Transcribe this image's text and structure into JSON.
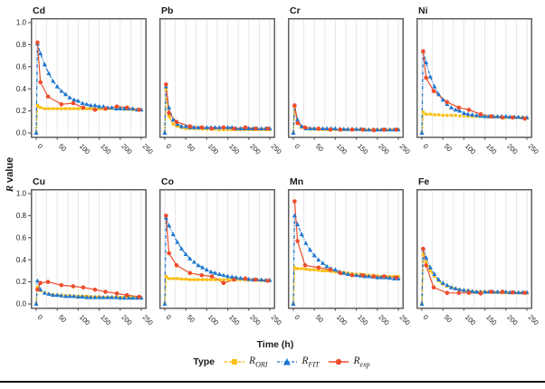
{
  "figure": {
    "y_axis_label_italic": "R",
    "y_axis_label_rest": " value",
    "x_axis_label": "Time (h)",
    "legend": {
      "title": "Type",
      "items": [
        {
          "main": "R",
          "sub": "ORI",
          "color": "#FCBE12",
          "marker": "square",
          "line": "dashed"
        },
        {
          "main": "R",
          "sub": "FIT",
          "color": "#1B76D1",
          "marker": "triangle",
          "line": "dashdot"
        },
        {
          "main": "R",
          "sub": "exp",
          "color": "#EE4D2B",
          "marker": "circle",
          "line": "solid"
        }
      ]
    },
    "colors": {
      "ori": "#FCBE12",
      "fit": "#1B76D1",
      "exp": "#EE4D2B",
      "grid": "#E4E4E4",
      "panel_border": "#5F5F5F",
      "tick_text": "#1a1a1a"
    }
  },
  "chart_data": {
    "type": "line",
    "layout": "2 rows x 4 columns of subplots, shared axes",
    "xlabel": "Time (h)",
    "ylabel": "R value",
    "xlim": [
      0,
      250
    ],
    "ylim": [
      0.0,
      1.0
    ],
    "x_ticks": [
      0,
      50,
      100,
      150,
      200,
      250
    ],
    "y_ticks": [
      "0.0",
      "0.2",
      "0.4",
      "0.6",
      "0.8",
      "1.0"
    ],
    "grid": "vertical gridlines every 25 h",
    "legend_position": "bottom center",
    "series_names": [
      "R_ORI",
      "R_FIT",
      "R_exp"
    ],
    "fit_x": [
      0,
      3,
      10,
      20,
      30,
      40,
      50,
      60,
      70,
      80,
      90,
      100,
      110,
      120,
      130,
      140,
      150,
      160,
      170,
      180,
      190,
      200,
      210,
      220,
      230,
      240,
      250
    ],
    "exp_x": [
      3,
      10,
      28,
      60,
      88,
      112,
      140,
      165,
      192,
      216,
      245
    ],
    "panels": [
      {
        "title": "Cd",
        "y_axis": true,
        "ori": [
          0,
          0.25,
          0.23,
          0.22,
          0.22,
          0.22,
          0.22,
          0.22,
          0.22,
          0.22,
          0.22,
          0.22,
          0.22,
          0.22,
          0.22,
          0.22,
          0.22,
          0.22,
          0.22,
          0.22,
          0.22,
          0.22,
          0.215,
          0.215,
          0.21,
          0.21,
          0.21
        ],
        "fit": [
          0,
          0.81,
          0.72,
          0.62,
          0.54,
          0.47,
          0.42,
          0.38,
          0.35,
          0.32,
          0.3,
          0.29,
          0.27,
          0.26,
          0.25,
          0.25,
          0.24,
          0.24,
          0.23,
          0.23,
          0.22,
          0.22,
          0.22,
          0.22,
          0.22,
          0.21,
          0.21
        ],
        "exp": [
          0.82,
          0.46,
          0.33,
          0.26,
          0.27,
          0.23,
          0.21,
          0.22,
          0.24,
          0.23,
          0.21
        ]
      },
      {
        "title": "Pb",
        "y_axis": false,
        "ori": [
          0,
          0.4,
          0.15,
          0.08,
          0.06,
          0.05,
          0.04,
          0.04,
          0.04,
          0.04,
          0.035,
          0.035,
          0.035,
          0.035,
          0.03,
          0.03,
          0.03,
          0.03,
          0.03,
          0.03,
          0.03,
          0.03,
          0.03,
          0.03,
          0.03,
          0.03,
          0.03
        ],
        "fit": [
          0,
          0.42,
          0.23,
          0.12,
          0.08,
          0.06,
          0.06,
          0.05,
          0.05,
          0.05,
          0.05,
          0.05,
          0.05,
          0.05,
          0.05,
          0.05,
          0.05,
          0.05,
          0.04,
          0.04,
          0.04,
          0.04,
          0.04,
          0.04,
          0.04,
          0.04,
          0.04
        ],
        "exp": [
          0.44,
          0.18,
          0.1,
          0.06,
          0.05,
          0.04,
          0.05,
          0.04,
          0.05,
          0.04,
          0.04
        ]
      },
      {
        "title": "Cr",
        "y_axis": false,
        "ori": [
          0,
          0.24,
          0.1,
          0.05,
          0.04,
          0.035,
          0.035,
          0.03,
          0.03,
          0.03,
          0.03,
          0.03,
          0.03,
          0.03,
          0.03,
          0.03,
          0.03,
          0.03,
          0.03,
          0.03,
          0.03,
          0.03,
          0.03,
          0.03,
          0.03,
          0.03,
          0.03
        ],
        "fit": [
          0,
          0.25,
          0.12,
          0.06,
          0.04,
          0.04,
          0.04,
          0.04,
          0.04,
          0.04,
          0.04,
          0.04,
          0.035,
          0.035,
          0.035,
          0.035,
          0.035,
          0.035,
          0.03,
          0.03,
          0.03,
          0.03,
          0.03,
          0.03,
          0.03,
          0.03,
          0.03
        ],
        "exp": [
          0.25,
          0.09,
          0.05,
          0.04,
          0.03,
          0.03,
          0.03,
          0.03,
          0.025,
          0.03,
          0.03
        ]
      },
      {
        "title": "Ni",
        "y_axis": false,
        "ori": [
          0,
          0.19,
          0.17,
          0.17,
          0.165,
          0.165,
          0.16,
          0.16,
          0.16,
          0.16,
          0.155,
          0.155,
          0.15,
          0.15,
          0.15,
          0.15,
          0.15,
          0.145,
          0.145,
          0.145,
          0.14,
          0.14,
          0.14,
          0.14,
          0.14,
          0.14,
          0.135
        ],
        "fit": [
          0,
          0.74,
          0.64,
          0.51,
          0.42,
          0.35,
          0.3,
          0.26,
          0.23,
          0.21,
          0.2,
          0.18,
          0.17,
          0.165,
          0.16,
          0.155,
          0.15,
          0.15,
          0.15,
          0.15,
          0.15,
          0.15,
          0.145,
          0.145,
          0.145,
          0.14,
          0.14
        ],
        "exp": [
          0.74,
          0.5,
          0.38,
          0.28,
          0.23,
          0.21,
          0.17,
          0.15,
          0.14,
          0.14,
          0.13
        ]
      },
      {
        "title": "Cu",
        "y_axis": true,
        "ori": [
          0,
          0.15,
          0.12,
          0.1,
          0.09,
          0.085,
          0.08,
          0.08,
          0.075,
          0.075,
          0.07,
          0.07,
          0.07,
          0.07,
          0.065,
          0.065,
          0.065,
          0.06,
          0.06,
          0.06,
          0.06,
          0.06,
          0.06,
          0.06,
          0.06,
          0.055,
          0.055
        ],
        "fit": [
          0,
          0.21,
          0.13,
          0.1,
          0.09,
          0.08,
          0.08,
          0.075,
          0.07,
          0.07,
          0.07,
          0.065,
          0.065,
          0.06,
          0.06,
          0.06,
          0.06,
          0.06,
          0.06,
          0.06,
          0.06,
          0.055,
          0.055,
          0.055,
          0.055,
          0.055,
          0.055
        ],
        "exp": [
          0.13,
          0.19,
          0.2,
          0.17,
          0.16,
          0.15,
          0.13,
          0.11,
          0.095,
          0.08,
          0.065
        ]
      },
      {
        "title": "Co",
        "y_axis": false,
        "ori": [
          0,
          0.25,
          0.23,
          0.23,
          0.23,
          0.225,
          0.225,
          0.22,
          0.22,
          0.22,
          0.22,
          0.22,
          0.22,
          0.22,
          0.22,
          0.22,
          0.22,
          0.22,
          0.22,
          0.22,
          0.22,
          0.215,
          0.215,
          0.215,
          0.21,
          0.21,
          0.21
        ],
        "fit": [
          0,
          0.78,
          0.71,
          0.63,
          0.56,
          0.5,
          0.45,
          0.41,
          0.38,
          0.35,
          0.33,
          0.31,
          0.29,
          0.28,
          0.27,
          0.26,
          0.25,
          0.245,
          0.24,
          0.235,
          0.23,
          0.225,
          0.22,
          0.22,
          0.22,
          0.215,
          0.215
        ],
        "exp": [
          0.8,
          0.46,
          0.35,
          0.28,
          0.26,
          0.25,
          0.19,
          0.22,
          0.23,
          0.22,
          0.21
        ]
      },
      {
        "title": "Mn",
        "y_axis": false,
        "ori": [
          0,
          0.33,
          0.32,
          0.32,
          0.315,
          0.31,
          0.31,
          0.305,
          0.3,
          0.3,
          0.295,
          0.29,
          0.29,
          0.285,
          0.28,
          0.275,
          0.27,
          0.27,
          0.265,
          0.26,
          0.26,
          0.255,
          0.25,
          0.25,
          0.25,
          0.25,
          0.25
        ],
        "fit": [
          0,
          0.8,
          0.72,
          0.63,
          0.55,
          0.49,
          0.44,
          0.4,
          0.37,
          0.34,
          0.32,
          0.31,
          0.29,
          0.28,
          0.27,
          0.265,
          0.26,
          0.255,
          0.25,
          0.25,
          0.245,
          0.24,
          0.24,
          0.24,
          0.235,
          0.23,
          0.23
        ],
        "exp": [
          0.93,
          0.57,
          0.35,
          0.33,
          0.31,
          0.28,
          0.26,
          0.26,
          0.25,
          0.25,
          0.24
        ]
      },
      {
        "title": "Fe",
        "y_axis": false,
        "ori": [
          0,
          0.45,
          0.38,
          0.3,
          0.25,
          0.21,
          0.18,
          0.16,
          0.15,
          0.14,
          0.13,
          0.12,
          0.12,
          0.11,
          0.11,
          0.11,
          0.11,
          0.11,
          0.105,
          0.105,
          0.1,
          0.1,
          0.1,
          0.1,
          0.1,
          0.1,
          0.1
        ],
        "fit": [
          0,
          0.5,
          0.42,
          0.33,
          0.27,
          0.22,
          0.19,
          0.17,
          0.15,
          0.14,
          0.13,
          0.125,
          0.12,
          0.115,
          0.11,
          0.11,
          0.11,
          0.11,
          0.11,
          0.11,
          0.11,
          0.11,
          0.105,
          0.105,
          0.105,
          0.105,
          0.105
        ],
        "exp": [
          0.5,
          0.35,
          0.15,
          0.1,
          0.1,
          0.1,
          0.095,
          0.11,
          0.11,
          0.105,
          0.1
        ]
      }
    ]
  }
}
